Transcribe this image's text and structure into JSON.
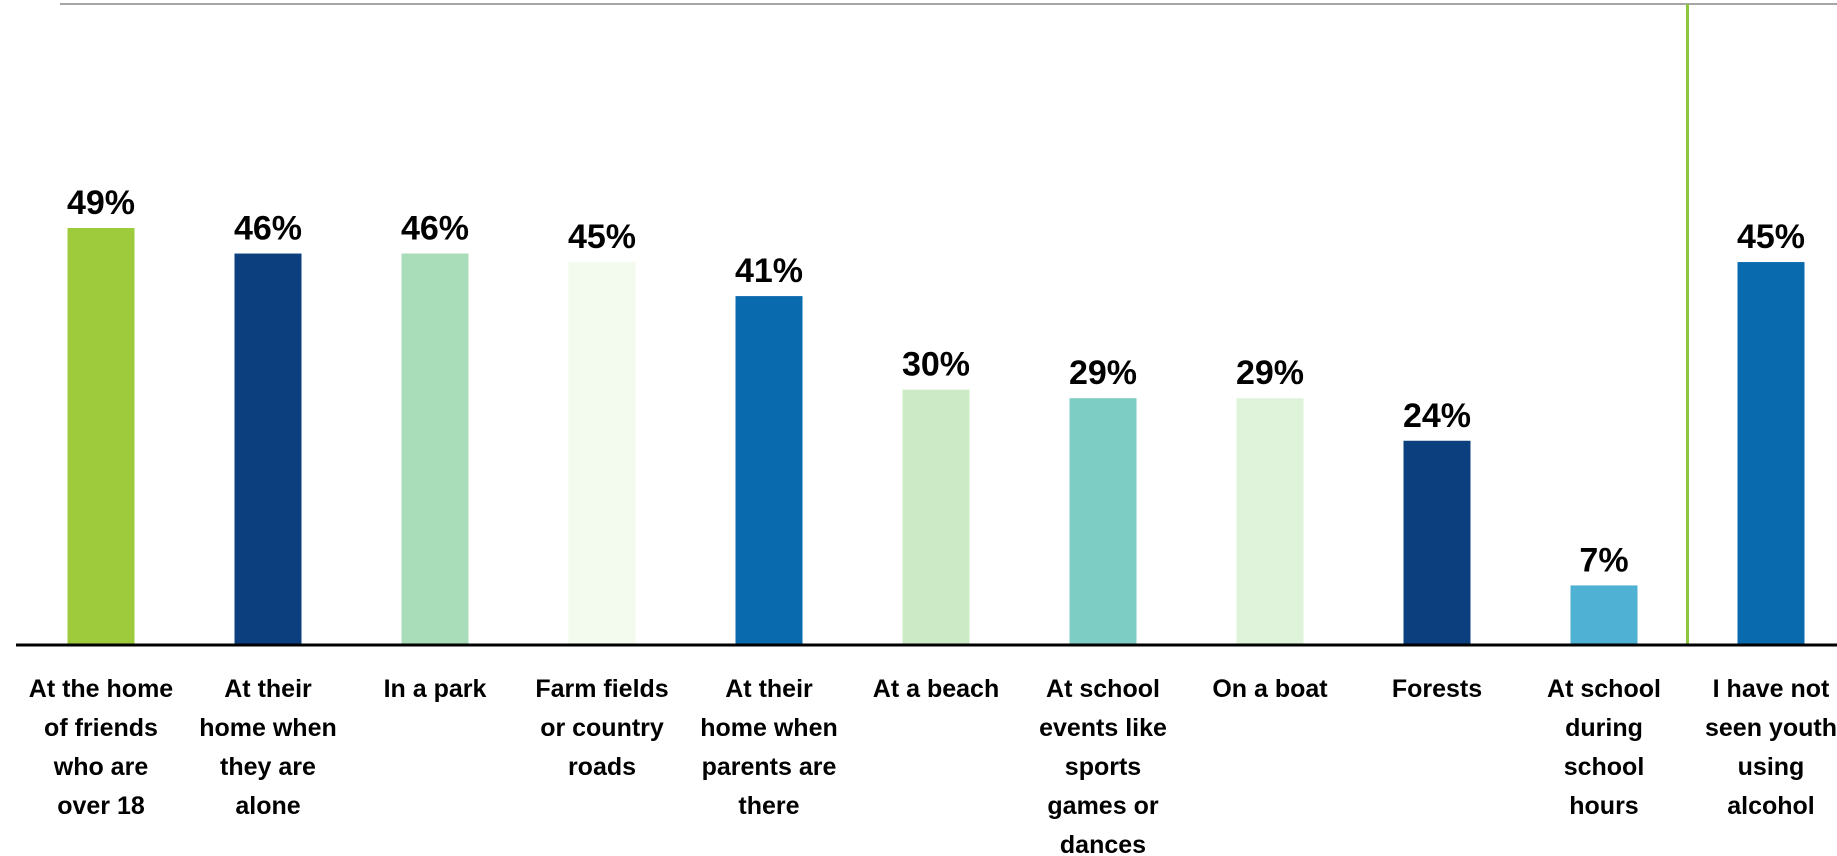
{
  "chart_data": {
    "type": "bar",
    "title": "",
    "xlabel": "",
    "ylabel": "",
    "ylim": [
      0,
      55
    ],
    "grid": false,
    "legend": "none",
    "categories": [
      [
        "At the home",
        "of friends",
        "who are",
        "over 18"
      ],
      [
        "At their",
        "home when",
        "they are",
        "alone"
      ],
      [
        "In a park"
      ],
      [
        "Farm fields",
        "or country",
        "roads"
      ],
      [
        "At their",
        "home when",
        "parents are",
        "there"
      ],
      [
        "At a beach"
      ],
      [
        "At school",
        "events like",
        "sports",
        "games or",
        "dances"
      ],
      [
        "On a boat"
      ],
      [
        "Forests"
      ],
      [
        "At school",
        "during",
        "school",
        "hours"
      ],
      [
        "I have not",
        "seen youth",
        "using",
        "alcohol"
      ]
    ],
    "values": [
      49,
      46,
      46,
      45,
      41,
      30,
      29,
      29,
      24,
      7,
      45
    ],
    "value_labels": [
      "49%",
      "46%",
      "46%",
      "45%",
      "41%",
      "30%",
      "29%",
      "29%",
      "24%",
      "7%",
      "45%"
    ],
    "colors": [
      "#9dcb3b",
      "#0b3f7e",
      "#a9dcb8",
      "#f3faee",
      "#0a6aae",
      "#cceac6",
      "#7ecdc4",
      "#def3da",
      "#0b3f7e",
      "#4fb1d3",
      "#0a6aae"
    ],
    "separator_after_index": 9,
    "separator_color": "#8cc63f"
  }
}
